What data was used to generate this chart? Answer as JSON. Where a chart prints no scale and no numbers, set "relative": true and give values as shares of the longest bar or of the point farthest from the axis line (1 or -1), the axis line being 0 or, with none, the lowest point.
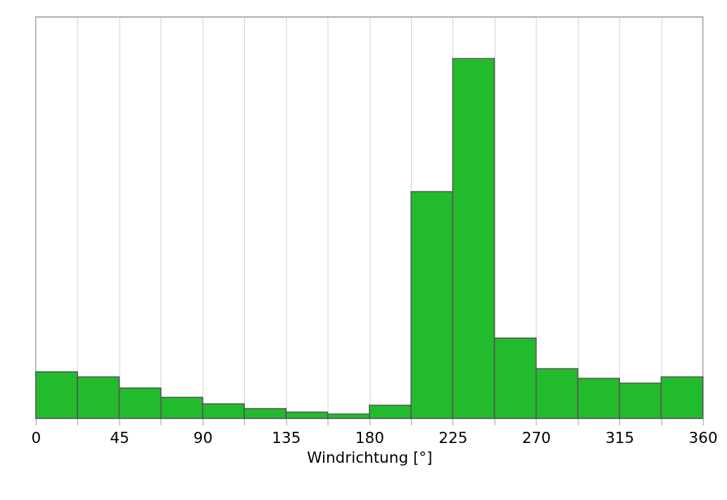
{
  "chart_data": {
    "type": "bar",
    "xlabel": "Windrichtung [°]",
    "relative": true,
    "x": [
      11.25,
      33.75,
      56.25,
      78.75,
      101.25,
      123.75,
      146.25,
      168.75,
      191.25,
      213.75,
      236.25,
      258.75,
      281.25,
      303.75,
      326.25,
      348.75
    ],
    "values": [
      0.129,
      0.115,
      0.084,
      0.058,
      0.04,
      0.027,
      0.017,
      0.012,
      0.036,
      0.63,
      1,
      0.223,
      0.138,
      0.111,
      0.098,
      0.115
    ],
    "color": "#22bb2e",
    "xlim": [
      0,
      360
    ],
    "xticks": [
      0,
      {
        "value": 22.5,
        "label": null
      },
      45,
      {
        "value": 67.5,
        "label": null
      },
      90,
      {
        "value": 112.5,
        "label": null
      },
      135,
      {
        "value": 157.5,
        "label": null
      },
      180,
      {
        "value": 202.5,
        "label": null
      },
      225,
      {
        "value": 247.5,
        "label": null
      },
      270,
      {
        "value": 292.5,
        "label": null
      },
      315,
      {
        "value": 337.5,
        "label": null
      },
      360
    ],
    "grid": "x",
    "legend": false
  }
}
